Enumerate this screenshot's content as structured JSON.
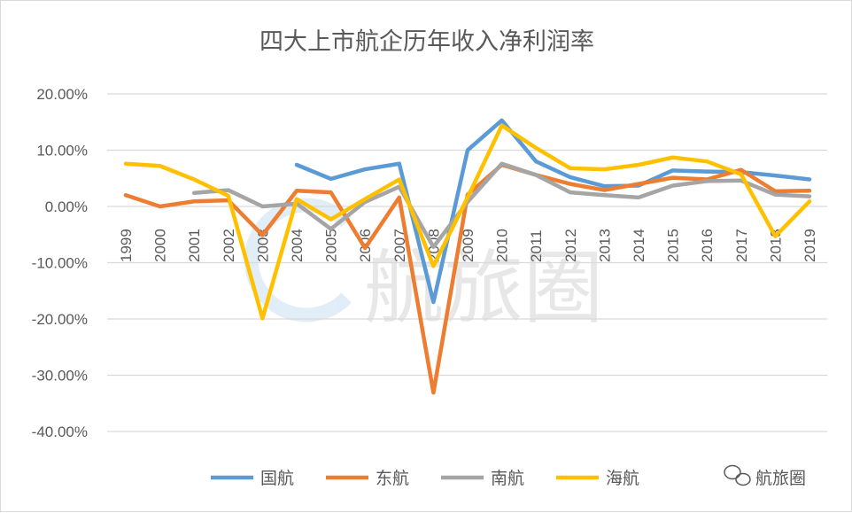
{
  "chart_data": {
    "type": "line",
    "title": "四大上市航企历年收入净利润率",
    "xlabel": "",
    "ylabel": "",
    "categories": [
      "1999",
      "2000",
      "2001",
      "2002",
      "2003",
      "2004",
      "2005",
      "2006",
      "2007",
      "2008",
      "2009",
      "2010",
      "2011",
      "2012",
      "2013",
      "2014",
      "2015",
      "2016",
      "2017",
      "2018",
      "2019"
    ],
    "ylim": [
      -40,
      20
    ],
    "yticks": [
      "20.00%",
      "10.00%",
      "0.00%",
      "-10.00%",
      "-20.00%",
      "-30.00%",
      "-40.00%"
    ],
    "ytick_values": [
      20,
      10,
      0,
      -10,
      -20,
      -30,
      -40
    ],
    "grid": true,
    "legend_position": "bottom",
    "series": [
      {
        "name": "国航",
        "color": "#5B9BD5",
        "values": [
          null,
          null,
          null,
          null,
          null,
          7.4,
          4.9,
          6.6,
          7.6,
          -17.0,
          10.0,
          15.3,
          8.0,
          5.2,
          3.6,
          3.7,
          6.4,
          6.2,
          6.1,
          5.5,
          4.8
        ]
      },
      {
        "name": "东航",
        "color": "#ED7D31",
        "values": [
          2.0,
          0.0,
          0.9,
          1.1,
          -5.1,
          2.8,
          2.5,
          -7.4,
          1.6,
          -33.1,
          2.1,
          7.4,
          5.6,
          4.0,
          2.9,
          4.0,
          5.1,
          4.8,
          6.5,
          2.7,
          2.8
        ]
      },
      {
        "name": "南航",
        "color": "#A5A5A5",
        "values": [
          null,
          null,
          2.4,
          2.9,
          0.0,
          0.5,
          -4.0,
          0.8,
          3.5,
          -7.2,
          0.8,
          7.6,
          5.6,
          2.5,
          2.0,
          1.6,
          3.7,
          4.5,
          4.6,
          2.1,
          1.8
        ]
      },
      {
        "name": "海航",
        "color": "#FFC000",
        "values": [
          7.6,
          7.2,
          4.8,
          1.9,
          -19.9,
          1.3,
          -2.3,
          1.3,
          4.8,
          -10.6,
          1.6,
          14.4,
          10.4,
          6.8,
          6.6,
          7.4,
          8.7,
          8.0,
          5.7,
          -5.3,
          0.9
        ]
      }
    ]
  },
  "watermark": {
    "text": "航旅圈",
    "label": "航旅圈",
    "icon": "wechat-icon"
  }
}
